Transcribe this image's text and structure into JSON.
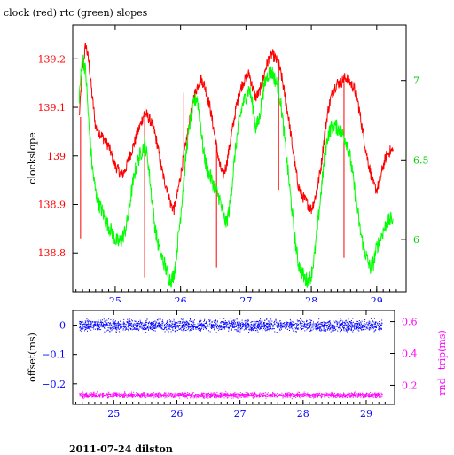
{
  "title": "clock (red) rtc (green) slopes",
  "footer": "2011-07-24 dilston",
  "colors": {
    "clock": "#ff0000",
    "rtc": "#00ff00",
    "offset": "#0000ff",
    "rndtrip": "#ff00ff",
    "axis": "#000000",
    "left_tick_labels": "#ff0000",
    "right_tick_labels": "#00cc00",
    "x_tick_labels": "#0000ff",
    "lower_left_tick_labels": "#0000ff",
    "lower_right_tick_labels": "#ff00ff"
  },
  "chart_data": [
    {
      "type": "line",
      "title": "clock (red) rtc (green) slopes",
      "xlabel": "",
      "xlim": [
        24.35,
        29.45
      ],
      "x_ticks": [
        25,
        26,
        27,
        28,
        29
      ],
      "ylabel": "clockslope",
      "ylim": [
        138.72,
        139.27
      ],
      "y_ticks": [
        138.8,
        138.9,
        139,
        139.1,
        139.2
      ],
      "y_tick_labels": [
        "138.8",
        "138.9",
        "139",
        "139.1",
        "139.2"
      ],
      "y2label": "",
      "y2lim": [
        5.67,
        7.35
      ],
      "y2_ticks": [
        6,
        6.5,
        7
      ],
      "y2_tick_labels": [
        "6",
        "6.5",
        "7"
      ],
      "grid": false,
      "series": [
        {
          "name": "clock",
          "axis": "left",
          "x": [
            24.45,
            24.5,
            24.55,
            24.6,
            24.65,
            24.7,
            24.75,
            24.8,
            24.85,
            24.9,
            24.95,
            25.0,
            25.05,
            25.1,
            25.15,
            25.2,
            25.25,
            25.3,
            25.35,
            25.4,
            25.45,
            25.5,
            25.55,
            25.6,
            25.65,
            25.7,
            25.75,
            25.8,
            25.85,
            25.9,
            25.95,
            26.0,
            26.05,
            26.1,
            26.15,
            26.2,
            26.25,
            26.3,
            26.35,
            26.4,
            26.45,
            26.5,
            26.55,
            26.6,
            26.65,
            26.7,
            26.75,
            26.8,
            26.85,
            26.9,
            26.95,
            27.0,
            27.05,
            27.1,
            27.15,
            27.2,
            27.25,
            27.3,
            27.35,
            27.4,
            27.45,
            27.5,
            27.55,
            27.6,
            27.65,
            27.7,
            27.75,
            27.8,
            27.85,
            27.9,
            27.95,
            28.0,
            28.05,
            28.1,
            28.15,
            28.2,
            28.25,
            28.3,
            28.35,
            28.4,
            28.45,
            28.5,
            28.55,
            28.6,
            28.65,
            28.7,
            28.75,
            28.8,
            28.85,
            28.9,
            28.95,
            29.0,
            29.05,
            29.1,
            29.15,
            29.2,
            29.25
          ],
          "y": [
            139.08,
            139.18,
            139.23,
            139.19,
            139.12,
            139.06,
            139.05,
            139.04,
            139.03,
            139.02,
            139.0,
            138.98,
            138.97,
            138.96,
            138.97,
            138.99,
            139.01,
            139.03,
            139.05,
            139.07,
            139.09,
            139.08,
            139.07,
            139.05,
            139.02,
            138.98,
            138.95,
            138.93,
            138.9,
            138.89,
            138.92,
            138.96,
            139.0,
            139.04,
            139.08,
            139.12,
            139.14,
            139.16,
            139.15,
            139.13,
            139.1,
            139.06,
            139.02,
            138.98,
            138.96,
            138.98,
            139.02,
            139.06,
            139.1,
            139.13,
            139.15,
            139.16,
            139.17,
            139.14,
            139.12,
            139.13,
            139.15,
            139.18,
            139.2,
            139.21,
            139.2,
            139.19,
            139.16,
            139.12,
            139.08,
            139.03,
            138.98,
            138.94,
            138.92,
            138.91,
            138.9,
            138.89,
            138.91,
            138.94,
            138.98,
            139.04,
            139.09,
            139.12,
            139.14,
            139.15,
            139.15,
            139.16,
            139.16,
            139.15,
            139.14,
            139.12,
            139.08,
            139.04,
            139.0,
            138.97,
            138.94,
            138.93,
            138.95,
            138.98,
            139.0,
            139.01,
            139.01
          ],
          "spikes": [
            {
              "x": 24.47,
              "y": 138.83
            },
            {
              "x": 25.45,
              "y": 138.75
            },
            {
              "x": 26.05,
              "y": 139.13
            },
            {
              "x": 26.55,
              "y": 138.77
            },
            {
              "x": 27.5,
              "y": 138.93
            },
            {
              "x": 28.5,
              "y": 138.79
            }
          ]
        },
        {
          "name": "rtc",
          "axis": "right",
          "x": [
            24.45,
            24.5,
            24.55,
            24.6,
            24.65,
            24.7,
            24.75,
            24.8,
            24.85,
            24.9,
            24.95,
            25.0,
            25.05,
            25.1,
            25.15,
            25.2,
            25.25,
            25.3,
            25.35,
            25.4,
            25.45,
            25.5,
            25.55,
            25.6,
            25.65,
            25.7,
            25.75,
            25.8,
            25.85,
            25.9,
            25.95,
            26.0,
            26.05,
            26.1,
            26.15,
            26.2,
            26.25,
            26.3,
            26.35,
            26.4,
            26.45,
            26.5,
            26.55,
            26.6,
            26.65,
            26.7,
            26.75,
            26.8,
            26.85,
            26.9,
            26.95,
            27.0,
            27.05,
            27.1,
            27.15,
            27.2,
            27.25,
            27.3,
            27.35,
            27.4,
            27.45,
            27.5,
            27.55,
            27.6,
            27.65,
            27.7,
            27.75,
            27.8,
            27.85,
            27.9,
            27.95,
            28.0,
            28.05,
            28.1,
            28.15,
            28.2,
            28.25,
            28.3,
            28.35,
            28.4,
            28.45,
            28.5,
            28.55,
            28.6,
            28.65,
            28.7,
            28.75,
            28.8,
            28.85,
            28.9,
            28.95,
            29.0,
            29.05,
            29.1,
            29.15,
            29.2,
            29.25
          ],
          "y": [
            6.9,
            7.15,
            7.05,
            6.7,
            6.45,
            6.3,
            6.22,
            6.18,
            6.12,
            6.08,
            6.05,
            6.0,
            5.98,
            6.0,
            6.05,
            6.15,
            6.3,
            6.42,
            6.5,
            6.55,
            6.6,
            6.5,
            6.3,
            6.1,
            5.98,
            5.9,
            5.85,
            5.78,
            5.74,
            5.78,
            5.95,
            6.15,
            6.38,
            6.6,
            6.75,
            6.85,
            6.9,
            6.75,
            6.55,
            6.45,
            6.4,
            6.35,
            6.3,
            6.25,
            6.15,
            6.1,
            6.2,
            6.4,
            6.6,
            6.75,
            6.85,
            6.9,
            6.95,
            6.85,
            6.7,
            6.75,
            6.9,
            7.0,
            7.05,
            7.05,
            7.0,
            6.95,
            6.8,
            6.6,
            6.4,
            6.2,
            6.0,
            5.85,
            5.8,
            5.75,
            5.74,
            5.78,
            5.9,
            6.1,
            6.3,
            6.5,
            6.65,
            6.7,
            6.72,
            6.7,
            6.68,
            6.65,
            6.6,
            6.5,
            6.35,
            6.2,
            6.05,
            5.95,
            5.88,
            5.82,
            5.85,
            5.95,
            6.0,
            6.05,
            6.1,
            6.12,
            6.13
          ],
          "spikes": []
        }
      ]
    },
    {
      "type": "scatter",
      "xlabel": "",
      "xlim": [
        24.35,
        29.45
      ],
      "x_ticks": [
        25,
        26,
        27,
        28,
        29
      ],
      "ylabel": "offset(ms)",
      "ylim": [
        -0.27,
        0.05
      ],
      "y_ticks": [
        0,
        -0.1,
        -0.2
      ],
      "y_tick_labels": [
        "0",
        "−0.1",
        "−0.2"
      ],
      "y2label": "rnd−trip(ms)",
      "y2lim": [
        0.08,
        0.67
      ],
      "y2_ticks": [
        0.2,
        0.4,
        0.6
      ],
      "y2_tick_labels": [
        "0.2",
        "0.4",
        "0.6"
      ],
      "grid": false,
      "series": [
        {
          "name": "offset",
          "axis": "left",
          "x_range": [
            24.45,
            29.25
          ],
          "center": 0.0,
          "spread": 0.015
        },
        {
          "name": "rnd-trip",
          "axis": "right",
          "x_range": [
            24.45,
            29.25
          ],
          "center": 0.14,
          "spread": 0.012
        }
      ]
    }
  ]
}
